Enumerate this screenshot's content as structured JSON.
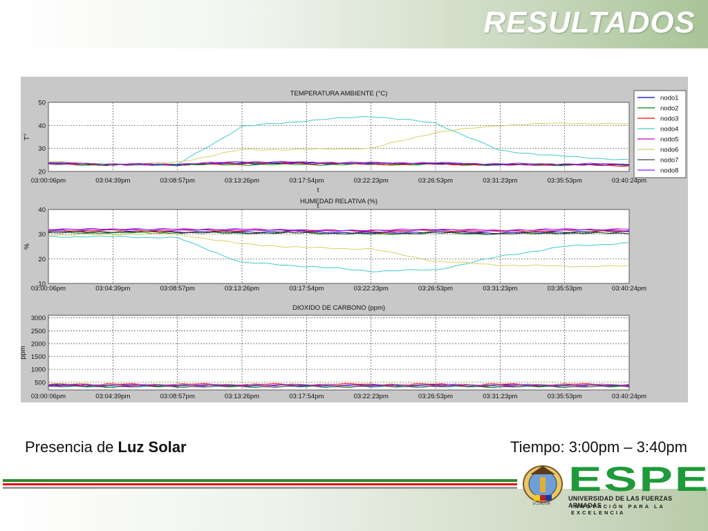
{
  "header": {
    "title": "RESULTADOS"
  },
  "caption": {
    "left_prefix": "Presencia de ",
    "left_bold": "Luz Solar",
    "right": "Tiempo: 3:00pm – 3:40pm"
  },
  "footer": {
    "logo_text": "ESPE",
    "logo_subtitle": "UNIVERSIDAD DE LAS FUERZAS ARMADAS",
    "logo_motto": "INNOVACIÓN PARA LA EXCELENCIA",
    "crest_label": "ECUADOR"
  },
  "colors": {
    "green": "#2e8b2e",
    "red": "#e00000",
    "gray": "#888888"
  },
  "chart_data": [
    {
      "type": "line",
      "title": "TEMPERATURA AMBIENTE (°C)",
      "xlabel": "t",
      "ylabel": "T°",
      "ylim": [
        20,
        50
      ],
      "yticks": [
        20,
        30,
        40,
        50
      ],
      "xtick_labels": [
        "03:00:06pm",
        "03:04:39pm",
        "03:08:57pm",
        "03:13:26pm",
        "03:17:54pm",
        "03:22:23pm",
        "03:26:53pm",
        "03:31:23pm",
        "03:35:53pm",
        "03:40:24pm"
      ],
      "grid": true,
      "legend": "right",
      "x": [
        0,
        1,
        2,
        3,
        4,
        5,
        6,
        7,
        8,
        9
      ],
      "series": [
        {
          "name": "nodo1",
          "color": "#0000aa",
          "values": [
            23.5,
            23,
            23,
            23.5,
            23.5,
            23.5,
            23.5,
            23,
            23,
            23
          ]
        },
        {
          "name": "nodo2",
          "color": "#008000",
          "values": [
            23,
            22.8,
            22.8,
            23,
            23,
            23,
            23,
            22.8,
            22.8,
            22.8
          ]
        },
        {
          "name": "nodo3",
          "color": "#ff0000",
          "values": [
            23.5,
            23,
            23,
            23.5,
            23.5,
            23.2,
            23.2,
            23,
            23,
            22.5
          ]
        },
        {
          "name": "nodo4",
          "color": "#40c8d0",
          "values": [
            24,
            23,
            23,
            39.5,
            42,
            44,
            41,
            29,
            26.5,
            25
          ]
        },
        {
          "name": "nodo5",
          "color": "#c000c0",
          "values": [
            23.5,
            23,
            23,
            24,
            23.8,
            23.5,
            23.5,
            23,
            23,
            22.8
          ]
        },
        {
          "name": "nodo6",
          "color": "#d8d060",
          "values": [
            24.5,
            23,
            24,
            29.5,
            29.5,
            30,
            37,
            40,
            41,
            40.5
          ]
        },
        {
          "name": "nodo7",
          "color": "#404040",
          "values": [
            23.5,
            23,
            23,
            24,
            23.8,
            23.5,
            23.5,
            23,
            23.2,
            23
          ]
        },
        {
          "name": "nodo8",
          "color": "#8020ff",
          "values": [
            23.8,
            23.2,
            23.2,
            24.2,
            24,
            23.8,
            23.7,
            23.3,
            23.3,
            23.2
          ]
        }
      ]
    },
    {
      "type": "line",
      "title": "HUMEDAD RELATIVA (%)",
      "xlabel": "t",
      "ylabel": "%",
      "ylim": [
        10,
        40
      ],
      "yticks": [
        10,
        20,
        30,
        40
      ],
      "xtick_labels": [
        "03:00:06pm",
        "03:04:39pm",
        "03:08:57pm",
        "03:13:26pm",
        "03:17:54pm",
        "03:22:23pm",
        "03:26:53pm",
        "03:31:23pm",
        "03:35:53pm",
        "03:40:24pm"
      ],
      "grid": true,
      "x": [
        0,
        1,
        2,
        3,
        4,
        5,
        6,
        7,
        8,
        9
      ],
      "series": [
        {
          "color": "#0000aa",
          "values": [
            31,
            31,
            31,
            31,
            31,
            30.5,
            31,
            30.5,
            31,
            31
          ]
        },
        {
          "color": "#008000",
          "values": [
            30.5,
            30.5,
            30.5,
            30.5,
            30.5,
            30,
            30.5,
            30,
            30.5,
            30.5
          ]
        },
        {
          "color": "#ff0000",
          "values": [
            31.5,
            31.5,
            31.5,
            31.5,
            31.5,
            31,
            31.5,
            31,
            31.5,
            31.5
          ]
        },
        {
          "color": "#40c8d0",
          "values": [
            29,
            29,
            28.5,
            18.5,
            17,
            15,
            15.5,
            21,
            25,
            26.5
          ]
        },
        {
          "color": "#c000c0",
          "values": [
            32,
            32,
            32,
            32,
            31.5,
            31.5,
            32,
            31.5,
            32,
            32
          ]
        },
        {
          "color": "#d8d060",
          "values": [
            29.5,
            30,
            30,
            26,
            24.5,
            24,
            19,
            17.5,
            17,
            17
          ]
        },
        {
          "color": "#404040",
          "values": [
            30.5,
            31,
            30.8,
            30.5,
            30.5,
            30.2,
            30.5,
            30.2,
            30.5,
            30.2
          ]
        },
        {
          "color": "#8020ff",
          "values": [
            31.8,
            32,
            31.8,
            31.8,
            31.6,
            31.4,
            31.8,
            31.4,
            31.8,
            31.6
          ]
        }
      ]
    },
    {
      "type": "line",
      "title": "DIOXIDO DE CARBONO (ppm)",
      "ylabel": "ppm",
      "ylim": [
        200,
        3100
      ],
      "yticks": [
        500,
        1000,
        1500,
        2000,
        2500,
        3000
      ],
      "xtick_labels": [
        "03:00:06pm",
        "03:04:39pm",
        "03:08:57pm",
        "03:13:26pm",
        "03:17:54pm",
        "03:22:23pm",
        "03:26:53pm",
        "03:31:23pm",
        "03:35:53pm",
        "03:40:24pm"
      ],
      "grid": true,
      "x": [
        0,
        1,
        2,
        3,
        4,
        5,
        6,
        7,
        8,
        9
      ],
      "series": [
        {
          "color": "#0000aa",
          "values": [
            400,
            390,
            395,
            390,
            395,
            390,
            400,
            395,
            390,
            395
          ]
        },
        {
          "color": "#008000",
          "values": [
            370,
            360,
            365,
            362,
            360,
            365,
            362,
            360,
            365,
            360
          ]
        },
        {
          "color": "#ff0000",
          "values": [
            430,
            420,
            425,
            420,
            420,
            425,
            420,
            420,
            420,
            425
          ]
        },
        {
          "color": "#40c8d0",
          "values": [
            350,
            340,
            345,
            342,
            345,
            340,
            345,
            342,
            340,
            345
          ]
        },
        {
          "color": "#c000c0",
          "values": [
            380,
            375,
            380,
            375,
            380,
            375,
            378,
            375,
            380,
            375
          ]
        },
        {
          "color": "#d8d060",
          "values": [
            460,
            400,
            410,
            405,
            400,
            410,
            405,
            400,
            405,
            400
          ]
        },
        {
          "color": "#404040",
          "values": [
            330,
            325,
            328,
            325,
            328,
            325,
            330,
            325,
            328,
            325
          ]
        },
        {
          "color": "#8020ff",
          "values": [
            390,
            385,
            388,
            385,
            388,
            385,
            390,
            385,
            388,
            385
          ]
        }
      ]
    }
  ]
}
